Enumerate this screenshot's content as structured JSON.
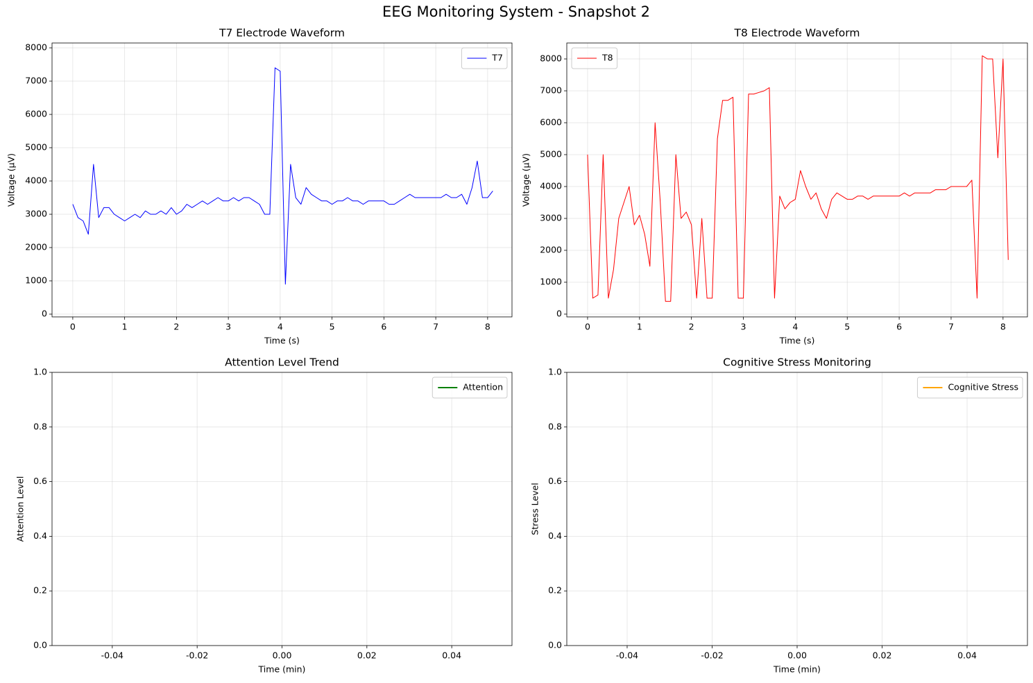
{
  "title": "EEG Monitoring System - Snapshot 2",
  "chart_data": [
    {
      "type": "line",
      "title": "T7 Electrode Waveform",
      "x_label": "Time (s)",
      "y_label": "Voltage (µV)",
      "xlim": [
        -0.4,
        8.47
      ],
      "ylim": [
        -83,
        8146
      ],
      "xticks": [
        0,
        1,
        2,
        3,
        4,
        5,
        6,
        7,
        8
      ],
      "yticks": [
        0,
        1000,
        2000,
        3000,
        4000,
        5000,
        6000,
        7000,
        8000
      ],
      "grid": true,
      "legend": "upper right",
      "x": [
        0,
        0.1,
        0.2,
        0.3,
        0.4,
        0.5,
        0.6,
        0.7,
        0.8,
        0.9,
        1,
        1.1,
        1.2,
        1.3,
        1.4,
        1.5,
        1.6,
        1.7,
        1.8,
        1.9,
        2,
        2.1,
        2.2,
        2.3,
        2.4,
        2.5,
        2.6,
        2.7,
        2.8,
        2.9,
        3,
        3.1,
        3.2,
        3.3,
        3.4,
        3.5,
        3.6,
        3.7,
        3.8,
        3.9,
        4,
        4.1,
        4.2,
        4.3,
        4.4,
        4.5,
        4.6,
        4.7,
        4.8,
        4.9,
        5,
        5.1,
        5.2,
        5.3,
        5.4,
        5.5,
        5.6,
        5.7,
        5.8,
        5.9,
        6,
        6.1,
        6.2,
        6.3,
        6.4,
        6.5,
        6.6,
        6.7,
        6.8,
        6.9,
        7,
        7.1,
        7.2,
        7.3,
        7.4,
        7.5,
        7.6,
        7.7,
        7.8,
        7.9,
        8,
        8.1
      ],
      "series": [
        {
          "name": "T7",
          "color": "#0000ff",
          "linewidth": 1,
          "values": [
            3300,
            2900,
            2800,
            2400,
            4500,
            2900,
            3200,
            3200,
            3000,
            2900,
            2800,
            2900,
            3000,
            2900,
            3100,
            3000,
            3000,
            3100,
            3000,
            3200,
            3000,
            3100,
            3300,
            3200,
            3300,
            3400,
            3300,
            3400,
            3500,
            3400,
            3400,
            3500,
            3400,
            3500,
            3500,
            3400,
            3300,
            3000,
            3000,
            7400,
            7300,
            900,
            4500,
            3500,
            3300,
            3800,
            3600,
            3500,
            3400,
            3400,
            3300,
            3400,
            3400,
            3500,
            3400,
            3400,
            3300,
            3400,
            3400,
            3400,
            3400,
            3300,
            3300,
            3400,
            3500,
            3600,
            3500,
            3500,
            3500,
            3500,
            3500,
            3500,
            3600,
            3500,
            3500,
            3600,
            3300,
            3800,
            4600,
            3500,
            3500,
            3700
          ]
        }
      ]
    },
    {
      "type": "line",
      "title": "T8 Electrode Waveform",
      "x_label": "Time (s)",
      "y_label": "Voltage (µV)",
      "xlim": [
        -0.4,
        8.47
      ],
      "ylim": [
        -87,
        8500
      ],
      "xticks": [
        0,
        1,
        2,
        3,
        4,
        5,
        6,
        7,
        8
      ],
      "yticks": [
        0,
        1000,
        2000,
        3000,
        4000,
        5000,
        6000,
        7000,
        8000
      ],
      "grid": true,
      "legend": "upper left",
      "x": [
        0,
        0.1,
        0.2,
        0.3,
        0.4,
        0.5,
        0.6,
        0.7,
        0.8,
        0.9,
        1,
        1.1,
        1.2,
        1.3,
        1.4,
        1.5,
        1.6,
        1.7,
        1.8,
        1.9,
        2,
        2.1,
        2.2,
        2.3,
        2.4,
        2.5,
        2.6,
        2.7,
        2.8,
        2.9,
        3,
        3.1,
        3.2,
        3.3,
        3.4,
        3.5,
        3.6,
        3.7,
        3.8,
        3.9,
        4,
        4.1,
        4.2,
        4.3,
        4.4,
        4.5,
        4.6,
        4.7,
        4.8,
        4.9,
        5,
        5.1,
        5.2,
        5.3,
        5.4,
        5.5,
        5.6,
        5.7,
        5.8,
        5.9,
        6,
        6.1,
        6.2,
        6.3,
        6.4,
        6.5,
        6.6,
        6.7,
        6.8,
        6.9,
        7,
        7.1,
        7.2,
        7.3,
        7.4,
        7.5,
        7.6,
        7.7,
        7.8,
        7.9,
        8,
        8.1
      ],
      "series": [
        {
          "name": "T8",
          "color": "#ff0000",
          "linewidth": 1,
          "values": [
            5000,
            500,
            600,
            5000,
            500,
            1400,
            3000,
            3500,
            4000,
            2800,
            3100,
            2500,
            1500,
            6000,
            3500,
            400,
            400,
            5000,
            3000,
            3200,
            2800,
            500,
            3000,
            500,
            500,
            5500,
            6700,
            6700,
            6800,
            500,
            500,
            6900,
            6900,
            6950,
            7000,
            7100,
            500,
            3700,
            3300,
            3500,
            3600,
            4500,
            4000,
            3600,
            3800,
            3300,
            3000,
            3600,
            3800,
            3700,
            3600,
            3600,
            3700,
            3700,
            3600,
            3700,
            3700,
            3700,
            3700,
            3700,
            3700,
            3800,
            3700,
            3800,
            3800,
            3800,
            3800,
            3900,
            3900,
            3900,
            4000,
            4000,
            4000,
            4000,
            4200,
            500,
            8100,
            8000,
            8000,
            4900,
            8000,
            1700
          ]
        }
      ]
    },
    {
      "type": "line",
      "title": "Attention Level Trend",
      "x_label": "Time (min)",
      "y_label": "Attention Level",
      "xlim": [
        -0.0542,
        0.0542
      ],
      "ylim": [
        0,
        1
      ],
      "xticks": [
        -0.04,
        -0.02,
        {
          "value": 0,
          "label": "0.00"
        },
        0.02,
        0.04
      ],
      "yticks": [
        {
          "value": 0,
          "label": "0.0"
        },
        0.2,
        0.4,
        0.6,
        0.8,
        {
          "value": 1,
          "label": "1.0"
        }
      ],
      "grid": true,
      "legend": "upper right",
      "x": [],
      "series": [
        {
          "name": "Attention",
          "color": "#008000",
          "linewidth": 2,
          "values": []
        }
      ]
    },
    {
      "type": "line",
      "title": "Cognitive Stress Monitoring",
      "x_label": "Time (min)",
      "y_label": "Stress Level",
      "xlim": [
        -0.0542,
        0.0542
      ],
      "ylim": [
        0,
        1
      ],
      "xticks": [
        -0.04,
        -0.02,
        {
          "value": 0,
          "label": "0.00"
        },
        0.02,
        0.04
      ],
      "yticks": [
        {
          "value": 0,
          "label": "0.0"
        },
        0.2,
        0.4,
        0.6,
        0.8,
        {
          "value": 1,
          "label": "1.0"
        }
      ],
      "grid": true,
      "legend": "upper right",
      "x": [],
      "series": [
        {
          "name": "Cognitive Stress",
          "color": "#ffa500",
          "linewidth": 2,
          "values": []
        }
      ]
    }
  ]
}
